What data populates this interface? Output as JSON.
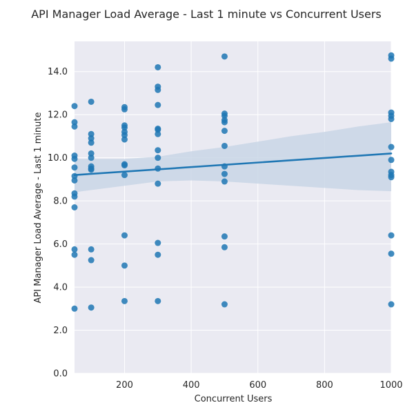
{
  "chart_data": {
    "type": "scatter",
    "title": "API Manager Load Average - Last 1 minute vs Concurrent Users",
    "xlabel": "Concurrent Users",
    "ylabel": "API Manager Load Average - Last 1 minute",
    "xlim": [
      50,
      1000
    ],
    "ylim": [
      0,
      15.4
    ],
    "xticks": [
      200,
      400,
      600,
      800,
      1000
    ],
    "xtick_labels": [
      "200",
      "400",
      "600",
      "800",
      "1000"
    ],
    "yticks": [
      0,
      2,
      4,
      6,
      8,
      10,
      12,
      14
    ],
    "ytick_labels": [
      "0.0",
      "2.0",
      "4.0",
      "6.0",
      "8.0",
      "10.0",
      "12.0",
      "14.0"
    ],
    "grid": true,
    "background": "#eaeaf2",
    "point_color": "#1f77b4",
    "line_color": "#1f77b4",
    "band_color": "#c9d6e6",
    "regression": {
      "start": [
        50,
        9.2
      ],
      "end": [
        1000,
        10.2
      ],
      "ci_upper": [
        [
          50,
          9.95
        ],
        [
          200,
          9.95
        ],
        [
          300,
          10.05
        ],
        [
          400,
          10.3
        ],
        [
          500,
          10.5
        ],
        [
          600,
          10.75
        ],
        [
          700,
          11.0
        ],
        [
          800,
          11.2
        ],
        [
          900,
          11.45
        ],
        [
          1000,
          11.65
        ]
      ],
      "ci_lower": [
        [
          50,
          8.4
        ],
        [
          200,
          8.7
        ],
        [
          300,
          8.9
        ],
        [
          400,
          8.95
        ],
        [
          500,
          8.9
        ],
        [
          600,
          8.8
        ],
        [
          700,
          8.7
        ],
        [
          800,
          8.6
        ],
        [
          900,
          8.5
        ],
        [
          1000,
          8.45
        ]
      ]
    },
    "points": [
      {
        "x": 50,
        "y": 12.4
      },
      {
        "x": 50,
        "y": 11.65
      },
      {
        "x": 50,
        "y": 11.45
      },
      {
        "x": 50,
        "y": 10.1
      },
      {
        "x": 50,
        "y": 9.95
      },
      {
        "x": 50,
        "y": 9.55
      },
      {
        "x": 50,
        "y": 9.15
      },
      {
        "x": 50,
        "y": 8.95
      },
      {
        "x": 50,
        "y": 8.35
      },
      {
        "x": 50,
        "y": 8.2
      },
      {
        "x": 50,
        "y": 7.7
      },
      {
        "x": 50,
        "y": 5.75
      },
      {
        "x": 50,
        "y": 5.5
      },
      {
        "x": 50,
        "y": 3.0
      },
      {
        "x": 100,
        "y": 12.6
      },
      {
        "x": 100,
        "y": 11.1
      },
      {
        "x": 100,
        "y": 10.9
      },
      {
        "x": 100,
        "y": 10.7
      },
      {
        "x": 100,
        "y": 10.2
      },
      {
        "x": 100,
        "y": 10.0
      },
      {
        "x": 100,
        "y": 9.6
      },
      {
        "x": 100,
        "y": 9.5
      },
      {
        "x": 100,
        "y": 9.45
      },
      {
        "x": 100,
        "y": 5.75
      },
      {
        "x": 100,
        "y": 5.25
      },
      {
        "x": 100,
        "y": 3.05
      },
      {
        "x": 200,
        "y": 12.35
      },
      {
        "x": 200,
        "y": 12.25
      },
      {
        "x": 200,
        "y": 11.5
      },
      {
        "x": 200,
        "y": 11.4
      },
      {
        "x": 200,
        "y": 11.2
      },
      {
        "x": 200,
        "y": 11.05
      },
      {
        "x": 200,
        "y": 10.85
      },
      {
        "x": 200,
        "y": 9.7
      },
      {
        "x": 200,
        "y": 9.65
      },
      {
        "x": 200,
        "y": 9.2
      },
      {
        "x": 200,
        "y": 6.4
      },
      {
        "x": 200,
        "y": 5.0
      },
      {
        "x": 200,
        "y": 3.35
      },
      {
        "x": 300,
        "y": 14.2
      },
      {
        "x": 300,
        "y": 13.3
      },
      {
        "x": 300,
        "y": 13.15
      },
      {
        "x": 300,
        "y": 12.45
      },
      {
        "x": 300,
        "y": 11.35
      },
      {
        "x": 300,
        "y": 11.3
      },
      {
        "x": 300,
        "y": 11.1
      },
      {
        "x": 300,
        "y": 10.35
      },
      {
        "x": 300,
        "y": 10.0
      },
      {
        "x": 300,
        "y": 9.5
      },
      {
        "x": 300,
        "y": 8.8
      },
      {
        "x": 300,
        "y": 6.05
      },
      {
        "x": 300,
        "y": 5.5
      },
      {
        "x": 300,
        "y": 3.35
      },
      {
        "x": 500,
        "y": 14.7
      },
      {
        "x": 500,
        "y": 12.05
      },
      {
        "x": 500,
        "y": 11.95
      },
      {
        "x": 500,
        "y": 11.75
      },
      {
        "x": 500,
        "y": 11.65
      },
      {
        "x": 500,
        "y": 11.25
      },
      {
        "x": 500,
        "y": 10.55
      },
      {
        "x": 500,
        "y": 9.6
      },
      {
        "x": 500,
        "y": 9.25
      },
      {
        "x": 500,
        "y": 8.9
      },
      {
        "x": 500,
        "y": 6.35
      },
      {
        "x": 500,
        "y": 5.85
      },
      {
        "x": 500,
        "y": 3.2
      },
      {
        "x": 1000,
        "y": 14.75
      },
      {
        "x": 1000,
        "y": 14.6
      },
      {
        "x": 1000,
        "y": 12.1
      },
      {
        "x": 1000,
        "y": 11.95
      },
      {
        "x": 1000,
        "y": 11.8
      },
      {
        "x": 1000,
        "y": 10.5
      },
      {
        "x": 1000,
        "y": 9.9
      },
      {
        "x": 1000,
        "y": 9.35
      },
      {
        "x": 1000,
        "y": 9.2
      },
      {
        "x": 1000,
        "y": 9.1
      },
      {
        "x": 1000,
        "y": 6.4
      },
      {
        "x": 1000,
        "y": 5.55
      },
      {
        "x": 1000,
        "y": 3.2
      }
    ]
  }
}
